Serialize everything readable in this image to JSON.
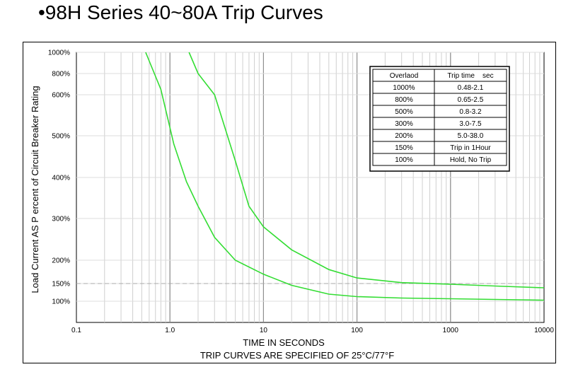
{
  "page": {
    "title": "•98H Series 40~80A Trip Curves"
  },
  "chart_data": {
    "type": "line",
    "x_scale": "log",
    "xlim": [
      0.1,
      10000
    ],
    "x_ticks": [
      0.1,
      1.0,
      10,
      100,
      1000,
      10000
    ],
    "x_tick_labels": [
      "0.1",
      "1.0",
      "10",
      "100",
      "1000",
      "10000"
    ],
    "y_ticks": [
      100,
      150,
      200,
      300,
      400,
      500,
      600,
      800,
      1000
    ],
    "y_tick_labels": [
      "100%",
      "150%",
      "200%",
      "300%",
      "400%",
      "500%",
      "600%",
      "800%",
      "1000%"
    ],
    "xlabel": "TIME IN SECONDS",
    "xlabel2": "TRIP CURVES ARE SPECIFIED OF 25°C/77°F",
    "ylabel": "Load Current AS P ercent of Circuit Breaker Rating",
    "grid": true,
    "series": [
      {
        "color": "#33dd33",
        "points": [
          [
            0.55,
            1000
          ],
          [
            0.8,
            650
          ],
          [
            1.1,
            480
          ],
          [
            1.5,
            390
          ],
          [
            2,
            330
          ],
          [
            3,
            255
          ],
          [
            5,
            200
          ],
          [
            10,
            170
          ],
          [
            20,
            145
          ],
          [
            50,
            120
          ],
          [
            100,
            113
          ],
          [
            300,
            109
          ],
          [
            1000,
            107
          ],
          [
            3000,
            105
          ],
          [
            10000,
            103
          ]
        ]
      },
      {
        "color": "#33dd33",
        "points": [
          [
            1.6,
            1000
          ],
          [
            2,
            800
          ],
          [
            3,
            600
          ],
          [
            5,
            440
          ],
          [
            7,
            330
          ],
          [
            10,
            280
          ],
          [
            20,
            225
          ],
          [
            50,
            180
          ],
          [
            100,
            162
          ],
          [
            300,
            152
          ],
          [
            1000,
            148
          ],
          [
            3000,
            143
          ],
          [
            10000,
            138
          ]
        ]
      }
    ],
    "reference_line": {
      "y": 150,
      "style": "dashed"
    },
    "table": {
      "headers": [
        "Overlaod",
        "Trip time    sec"
      ],
      "rows": [
        [
          "1000%",
          "0.48-2.1"
        ],
        [
          "800%",
          "0.65-2.5"
        ],
        [
          "500%",
          "0.8-3.2"
        ],
        [
          "300%",
          "3.0-7.5"
        ],
        [
          "200%",
          "5.0-38.0"
        ],
        [
          "150%",
          "Trip in 1Hour"
        ],
        [
          "100%",
          "Hold, No Trip"
        ]
      ]
    }
  }
}
